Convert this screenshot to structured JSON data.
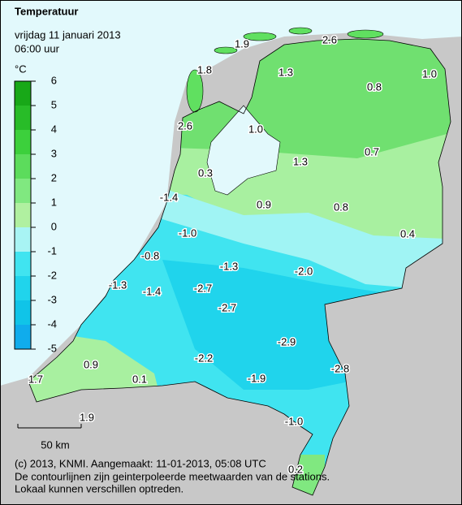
{
  "header": {
    "title": "Temperatuur",
    "date": "vrijdag 11 januari 2013",
    "time": "06:00 uur"
  },
  "legend": {
    "unit": "°C",
    "ticks": [
      6,
      5,
      4,
      3,
      2,
      1,
      0,
      -1,
      -2,
      -3,
      -4,
      -5
    ]
  },
  "stations": [
    {
      "label": "1.9"
    },
    {
      "label": "2.6"
    },
    {
      "label": "1.8"
    },
    {
      "label": "1.3"
    },
    {
      "label": "0.8"
    },
    {
      "label": "1.0"
    },
    {
      "label": "2.6"
    },
    {
      "label": "1.0"
    },
    {
      "label": "0.7"
    },
    {
      "label": "1.3"
    },
    {
      "label": "0.3"
    },
    {
      "label": "-1.4"
    },
    {
      "label": "0.9"
    },
    {
      "label": "0.8"
    },
    {
      "label": "0.4"
    },
    {
      "label": "-1.0"
    },
    {
      "label": "-0.8"
    },
    {
      "label": "-1.3"
    },
    {
      "label": "-2.0"
    },
    {
      "label": "-1.3"
    },
    {
      "label": "-1.4"
    },
    {
      "label": "-2.7"
    },
    {
      "label": "-2.7"
    },
    {
      "label": "-2.9"
    },
    {
      "label": "-2.8"
    },
    {
      "label": "-2.2"
    },
    {
      "label": "0.9"
    },
    {
      "label": "-1.9"
    },
    {
      "label": "1.7"
    },
    {
      "label": "0.1"
    },
    {
      "label": "-1.0"
    },
    {
      "label": "1.9"
    },
    {
      "label": "0.2"
    }
  ],
  "scale": {
    "label": "50 km"
  },
  "footer": {
    "lines": [
      "(c) 2013, KNMI. Aangemaakt: 11-01-2013, 05:08 UTC",
      "De contourlijnen zijn geinterpoleerde meetwaarden van de stations.",
      "Lokaal kunnen verschillen optreden."
    ]
  }
}
